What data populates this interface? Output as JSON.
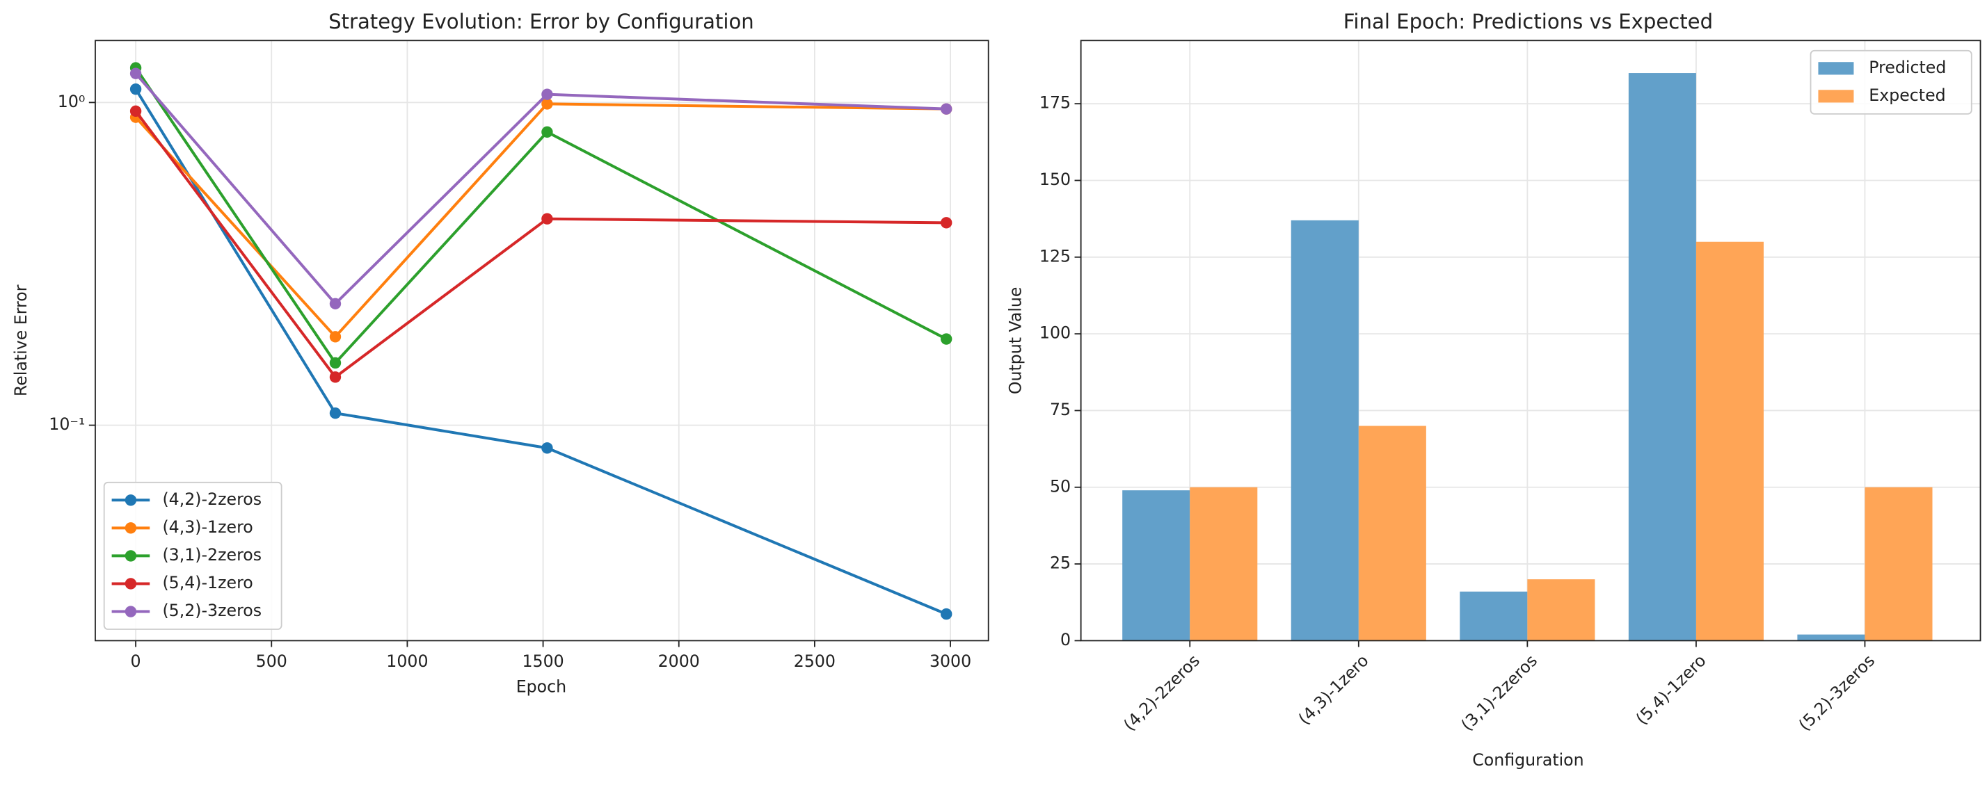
{
  "chart_data": [
    {
      "type": "line",
      "title": "Strategy Evolution: Error by Configuration",
      "xlabel": "Epoch",
      "ylabel": "Relative Error",
      "x": [
        0,
        735,
        1515,
        2985
      ],
      "xlim": [
        -149,
        3140
      ],
      "xticks": [
        0,
        500,
        1000,
        1500,
        2000,
        2500,
        3000
      ],
      "ylog": true,
      "ylim": [
        0.0215,
        1.556
      ],
      "yticks": [
        {
          "value": 0.1,
          "label": "10⁻¹"
        },
        {
          "value": 1,
          "label": "10⁰"
        }
      ],
      "grid": true,
      "legend": "lower left",
      "series": [
        {
          "name": "(4,2)-2zeros",
          "color": "#1f77b4",
          "values": [
            1.1,
            0.109,
            0.085,
            0.026
          ]
        },
        {
          "name": "(4,3)-1zero",
          "color": "#ff7f0e",
          "values": [
            0.9,
            0.188,
            0.99,
            0.955
          ]
        },
        {
          "name": "(3,1)-2zeros",
          "color": "#2ca02c",
          "values": [
            1.28,
            0.156,
            0.81,
            0.185
          ]
        },
        {
          "name": "(5,4)-1zero",
          "color": "#d62728",
          "values": [
            0.94,
            0.141,
            0.436,
            0.424
          ]
        },
        {
          "name": "(5,2)-3zeros",
          "color": "#9467bd",
          "values": [
            1.23,
            0.238,
            1.06,
            0.955
          ]
        }
      ]
    },
    {
      "type": "bar",
      "title": "Final Epoch: Predictions vs Expected",
      "xlabel": "Configuration",
      "ylabel": "Output Value",
      "categories": [
        "(4,2)-2zeros",
        "(4,3)-1zero",
        "(3,1)-2zeros",
        "(5,4)-1zero",
        "(5,2)-3zeros"
      ],
      "ylim": [
        0,
        195.6
      ],
      "yticks": [
        0,
        25,
        50,
        75,
        100,
        125,
        150,
        175
      ],
      "grid": true,
      "legend": "upper right",
      "series": [
        {
          "name": "Predicted",
          "color": "#62a0ca",
          "values": [
            49,
            137,
            16,
            185,
            2
          ]
        },
        {
          "name": "Expected",
          "color": "#ffa556",
          "values": [
            50,
            70,
            20,
            130,
            50
          ]
        }
      ]
    }
  ]
}
